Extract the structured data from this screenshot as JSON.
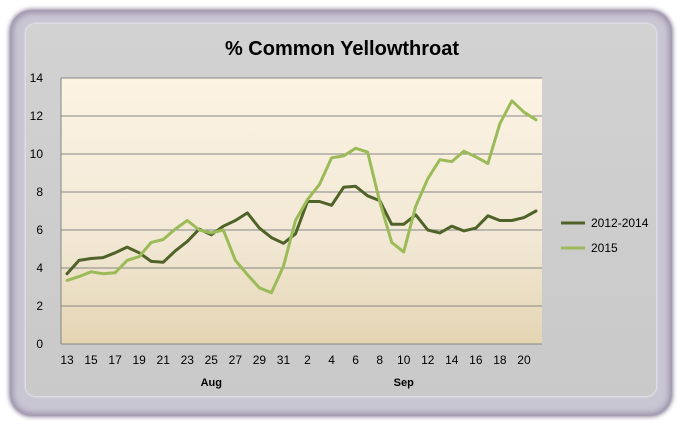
{
  "chart_data": {
    "type": "line",
    "title": "% Common Yellowthroat",
    "xlabel": "",
    "ylabel": "",
    "ylim": [
      0,
      14
    ],
    "yticks": [
      "0",
      "2",
      "4",
      "6",
      "8",
      "10",
      "12",
      "14"
    ],
    "x_tick_labels": [
      "13",
      "15",
      "17",
      "19",
      "21",
      "23",
      "25",
      "27",
      "29",
      "31",
      "2",
      "4",
      "6",
      "8",
      "10",
      "12",
      "14",
      "16",
      "18",
      "20"
    ],
    "month_labels": [
      {
        "label": "Aug",
        "index": 12
      },
      {
        "label": "Sep",
        "index": 28
      }
    ],
    "grid": "horizontal",
    "legend_position": "right",
    "series": [
      {
        "name": "2012-2014",
        "color": "#4f6228",
        "values": [
          3.7,
          4.4,
          4.5,
          4.55,
          4.8,
          5.1,
          4.8,
          4.35,
          4.3,
          4.9,
          5.4,
          6.05,
          5.75,
          6.2,
          6.5,
          6.9,
          6.1,
          5.6,
          5.3,
          5.8,
          7.5,
          7.5,
          7.3,
          8.25,
          8.3,
          7.8,
          7.55,
          6.3,
          6.3,
          6.8,
          6.0,
          5.85,
          6.2,
          5.95,
          6.1,
          6.75,
          6.5,
          6.5,
          6.65,
          7.0
        ]
      },
      {
        "name": "2015",
        "color": "#9bbb59",
        "values": [
          3.35,
          3.55,
          3.8,
          3.7,
          3.75,
          4.4,
          4.6,
          5.35,
          5.5,
          6.05,
          6.5,
          6.0,
          5.85,
          6.0,
          4.4,
          3.65,
          2.95,
          2.7,
          4.1,
          6.5,
          7.6,
          8.4,
          9.8,
          9.9,
          10.3,
          10.1,
          7.5,
          5.35,
          4.85,
          7.25,
          8.7,
          9.7,
          9.6,
          10.15,
          9.85,
          9.5,
          11.6,
          12.8,
          12.2,
          11.8
        ]
      }
    ]
  }
}
